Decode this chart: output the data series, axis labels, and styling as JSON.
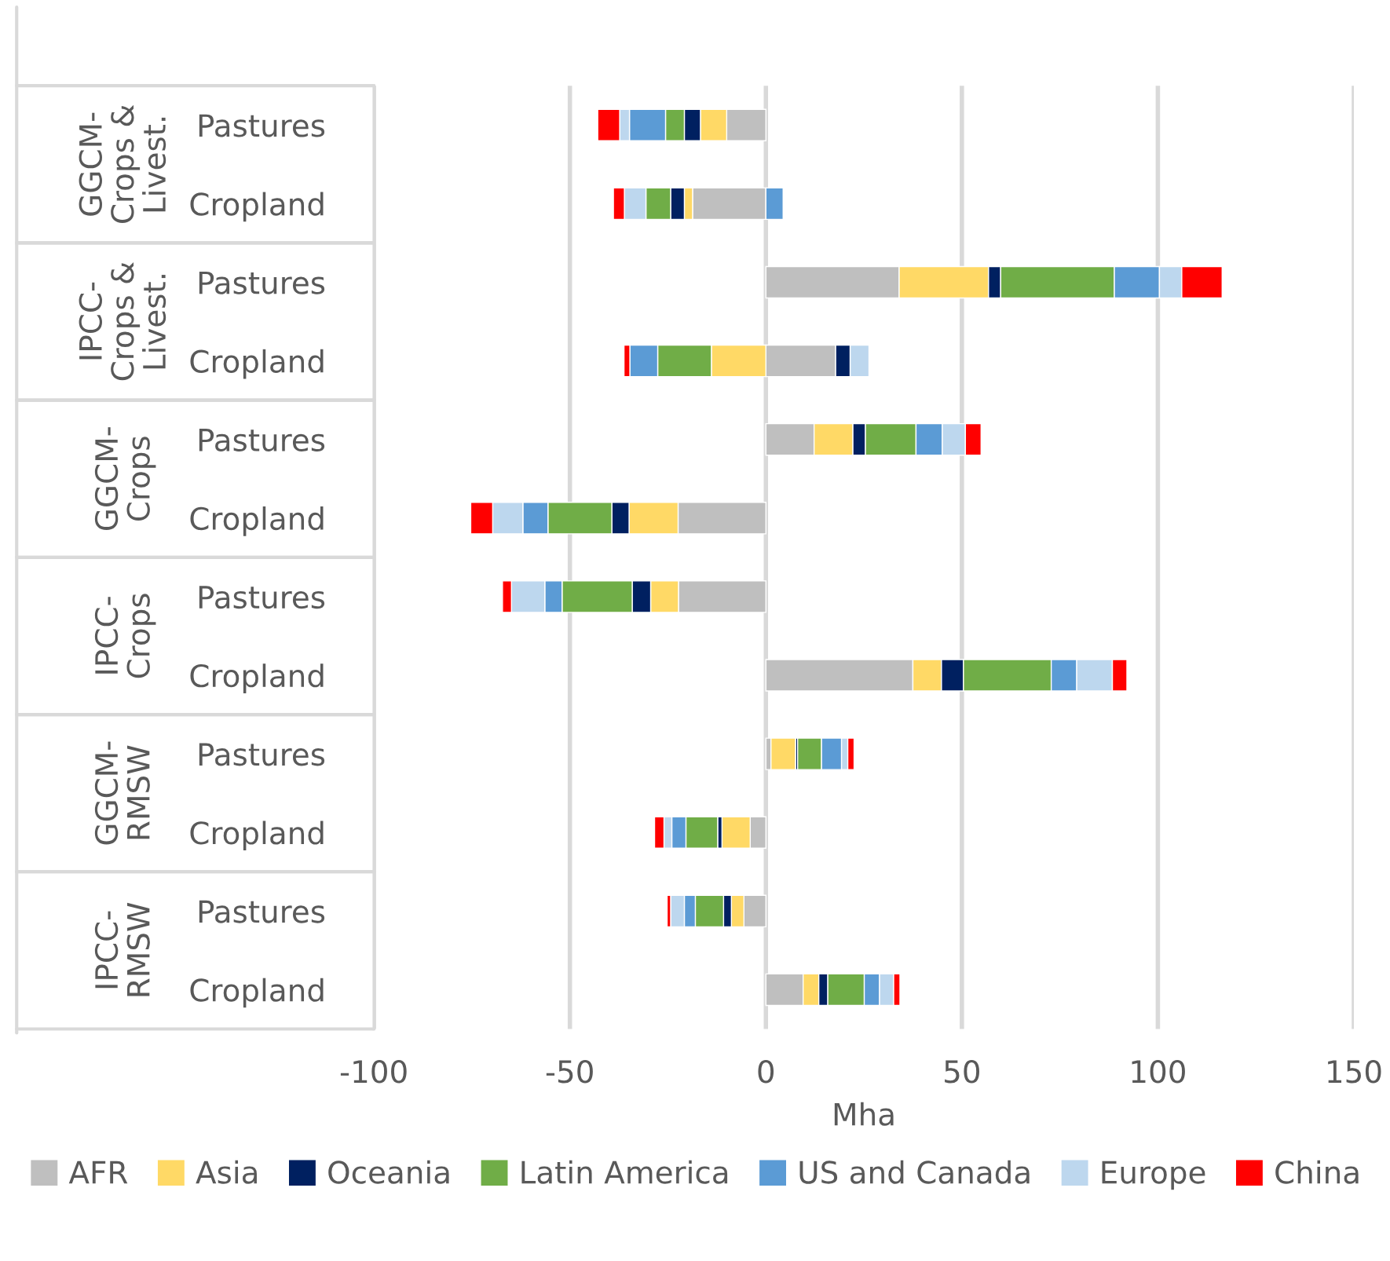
{
  "chart_data": {
    "type": "bar",
    "orientation": "horizontal",
    "stacked": true,
    "categories": [
      "Pastures",
      "Cropland",
      "Pastures",
      "Cropland",
      "Pastures",
      "Cropland",
      "Pastures",
      "Cropland",
      "Pastures",
      "Cropland",
      "Pastures",
      "Cropland"
    ],
    "annotations": [
      "GGCM-\nCrops &\nLivest.",
      "IPCC-\nCrops &\nLivest.",
      "GGCM-\nCrops",
      "IPCC-\nCrops",
      "GGCM-\nRMSW",
      "IPCC-\nRMSW"
    ],
    "xlabel": "Mha",
    "xlim": [
      -100,
      150
    ],
    "xticks": [
      -100,
      -50,
      0,
      50,
      100,
      150
    ],
    "grid": "x",
    "legend": "bottom",
    "series": [
      {
        "name": "AFR",
        "color": "#bfbfbf",
        "values": [
          -10,
          -18.7,
          34,
          17.8,
          12.3,
          -22.4,
          -22.3,
          37.5,
          1.3,
          -4,
          -5.6,
          9.5
        ]
      },
      {
        "name": "Asia",
        "color": "#ffd966",
        "values": [
          -6.7,
          -2.1,
          22.8,
          -13.9,
          9.9,
          -12.5,
          -7.1,
          7.3,
          6.3,
          -7.2,
          -3.2,
          4
        ]
      },
      {
        "name": "Oceania",
        "color": "#002060",
        "values": [
          -4.1,
          -3.5,
          3.1,
          3.7,
          3.2,
          -4.4,
          -4.7,
          5.6,
          0.5,
          -1.1,
          -2,
          2.3
        ]
      },
      {
        "name": "Latin America",
        "color": "#70ad47",
        "values": [
          -4.8,
          -6.3,
          29,
          -13.7,
          12.9,
          -16.3,
          -17.9,
          22.4,
          6.1,
          -8.1,
          -7.2,
          9.3
        ]
      },
      {
        "name": "US and Canada",
        "color": "#5b9bd5",
        "values": [
          -9.2,
          4.4,
          11.5,
          -7.1,
          6.7,
          -6.4,
          -4.4,
          6.5,
          5.1,
          -3.6,
          -2.8,
          3.9
        ]
      },
      {
        "name": "Europe",
        "color": "#bdd7ee",
        "values": [
          -2.5,
          -5.5,
          5.7,
          4.8,
          5.9,
          -7.7,
          -8.5,
          9.1,
          1.6,
          -2,
          -3.5,
          3.6
        ]
      },
      {
        "name": "China",
        "color": "#ff0000",
        "values": [
          -5.6,
          -2.8,
          10.3,
          -1.5,
          4,
          -5.6,
          -2.3,
          3.7,
          1.6,
          -2.4,
          -0.9,
          1.6
        ]
      }
    ]
  }
}
